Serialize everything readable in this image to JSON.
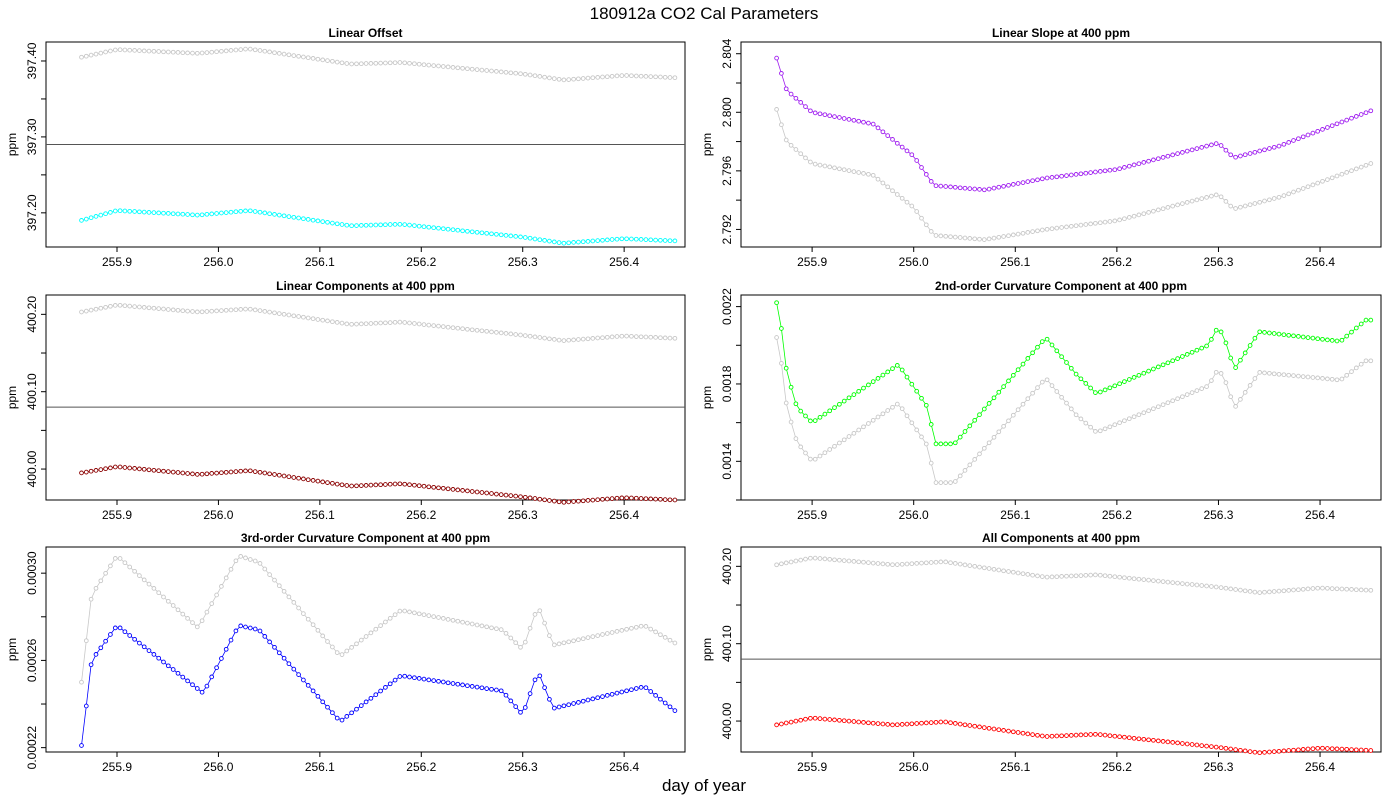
{
  "figure": {
    "title": "180912a   CO2 Cal Parameters",
    "xlabel": "day of year",
    "colors": {
      "reference": "#c8c8c8",
      "axis": "#000000",
      "hline": "#555555"
    }
  },
  "chart_data": [
    {
      "type": "line",
      "title": "Linear Offset",
      "ylabel": "ppm",
      "xlim": [
        255.83,
        256.46
      ],
      "ylim": [
        397.155,
        397.425
      ],
      "xticks": [
        255.9,
        256.0,
        256.1,
        256.2,
        256.3,
        256.4
      ],
      "xtick_labels": [
        "255.9",
        "256.0",
        "256.1",
        "256.2",
        "256.3",
        "256.4"
      ],
      "yticks": [
        397.2,
        397.3,
        397.4
      ],
      "ytick_labels": [
        "397.20",
        "397.30",
        "397.40"
      ],
      "hline": 397.29,
      "x_range": [
        255.865,
        256.45
      ],
      "series": [
        {
          "color": "#c8c8c8",
          "values": [
            [
              255.865,
              397.405
            ],
            [
              255.9,
              397.415
            ],
            [
              255.98,
              397.41
            ],
            [
              256.03,
              397.416
            ],
            [
              256.13,
              397.396
            ],
            [
              256.18,
              397.398
            ],
            [
              256.3,
              397.383
            ],
            [
              256.34,
              397.375
            ],
            [
              256.4,
              397.381
            ],
            [
              256.45,
              397.378
            ]
          ]
        },
        {
          "color": "#00ffff",
          "values": [
            [
              255.865,
              397.19
            ],
            [
              255.9,
              397.203
            ],
            [
              255.98,
              397.197
            ],
            [
              256.03,
              397.203
            ],
            [
              256.13,
              397.183
            ],
            [
              256.18,
              397.185
            ],
            [
              256.3,
              397.168
            ],
            [
              256.34,
              397.16
            ],
            [
              256.4,
              397.166
            ],
            [
              256.45,
              397.163
            ]
          ]
        }
      ]
    },
    {
      "type": "line",
      "title": "Linear Slope at 400 ppm",
      "ylabel": "ppm",
      "xlim": [
        255.83,
        256.46
      ],
      "ylim": [
        2.7908,
        2.8048
      ],
      "xticks": [
        255.9,
        256.0,
        256.1,
        256.2,
        256.3,
        256.4
      ],
      "xtick_labels": [
        "255.9",
        "256.0",
        "256.1",
        "256.2",
        "256.3",
        "256.4"
      ],
      "yticks": [
        2.792,
        2.796,
        2.8,
        2.804
      ],
      "ytick_labels": [
        "2.792",
        "2.796",
        "2.800",
        "2.804"
      ],
      "hline": null,
      "x_range": [
        255.865,
        256.45
      ],
      "series": [
        {
          "color": "#c8c8c8",
          "values": [
            [
              255.865,
              2.8002
            ],
            [
              255.875,
              2.798
            ],
            [
              255.9,
              2.7965
            ],
            [
              255.96,
              2.7957
            ],
            [
              256.0,
              2.7935
            ],
            [
              256.02,
              2.7916
            ],
            [
              256.07,
              2.7913
            ],
            [
              256.13,
              2.792
            ],
            [
              256.2,
              2.7926
            ],
            [
              256.3,
              2.7944
            ],
            [
              256.315,
              2.7934
            ],
            [
              256.36,
              2.7942
            ],
            [
              256.45,
              2.7965
            ]
          ]
        },
        {
          "color": "#a020f0",
          "values": [
            [
              255.865,
              2.8037
            ],
            [
              255.875,
              2.8015
            ],
            [
              255.9,
              2.8
            ],
            [
              255.96,
              2.7992
            ],
            [
              256.0,
              2.797
            ],
            [
              256.02,
              2.795
            ],
            [
              256.07,
              2.7947
            ],
            [
              256.13,
              2.7955
            ],
            [
              256.2,
              2.7961
            ],
            [
              256.3,
              2.7979
            ],
            [
              256.315,
              2.7969
            ],
            [
              256.36,
              2.7977
            ],
            [
              256.45,
              2.8001
            ]
          ]
        }
      ]
    },
    {
      "type": "line",
      "title": "Linear Components at 400 ppm",
      "ylabel": "ppm",
      "xlim": [
        255.83,
        256.46
      ],
      "ylim": [
        399.96,
        400.225
      ],
      "xticks": [
        255.9,
        256.0,
        256.1,
        256.2,
        256.3,
        256.4
      ],
      "xtick_labels": [
        "255.9",
        "256.0",
        "256.1",
        "256.2",
        "256.3",
        "256.4"
      ],
      "yticks": [
        400.0,
        400.1,
        400.2
      ],
      "ytick_labels": [
        "400.00",
        "400.10",
        "400.20"
      ],
      "hline": 400.08,
      "x_range": [
        255.865,
        256.45
      ],
      "series": [
        {
          "color": "#c8c8c8",
          "values": [
            [
              255.865,
              400.203
            ],
            [
              255.9,
              400.212
            ],
            [
              255.98,
              400.203
            ],
            [
              256.03,
              400.207
            ],
            [
              256.13,
              400.187
            ],
            [
              256.18,
              400.19
            ],
            [
              256.3,
              400.173
            ],
            [
              256.34,
              400.166
            ],
            [
              256.4,
              400.172
            ],
            [
              256.45,
              400.169
            ]
          ]
        },
        {
          "color": "#8b0000",
          "values": [
            [
              255.865,
              399.995
            ],
            [
              255.9,
              400.003
            ],
            [
              255.98,
              399.993
            ],
            [
              256.03,
              399.998
            ],
            [
              256.13,
              399.978
            ],
            [
              256.18,
              399.981
            ],
            [
              256.3,
              399.964
            ],
            [
              256.34,
              399.957
            ],
            [
              256.4,
              399.963
            ],
            [
              256.45,
              399.96
            ]
          ]
        }
      ]
    },
    {
      "type": "line",
      "title": "2nd-order Curvature Component at 400 ppm",
      "ylabel": "ppm",
      "xlim": [
        255.83,
        256.46
      ],
      "ylim": [
        0.0012,
        0.00226
      ],
      "xticks": [
        255.9,
        256.0,
        256.1,
        256.2,
        256.3,
        256.4
      ],
      "xtick_labels": [
        "255.9",
        "256.0",
        "256.1",
        "256.2",
        "256.3",
        "256.4"
      ],
      "yticks": [
        0.0014,
        0.0018,
        0.0022
      ],
      "ytick_labels": [
        "0.0014",
        "0.0018",
        "0.0022"
      ],
      "hline": null,
      "x_range": [
        255.865,
        256.45
      ],
      "series": [
        {
          "color": "#c8c8c8",
          "values": [
            [
              255.865,
              0.00204
            ],
            [
              255.87,
              0.0019
            ],
            [
              255.875,
              0.00168
            ],
            [
              255.885,
              0.0015
            ],
            [
              255.9,
              0.0014
            ],
            [
              255.985,
              0.0017
            ],
            [
              256.015,
              0.00147
            ],
            [
              256.02,
              0.00129
            ],
            [
              256.04,
              0.00129
            ],
            [
              256.13,
              0.00183
            ],
            [
              256.16,
              0.00164
            ],
            [
              256.18,
              0.00155
            ],
            [
              256.29,
              0.00179
            ],
            [
              256.3,
              0.00188
            ],
            [
              256.31,
              0.00178
            ],
            [
              256.315,
              0.00167
            ],
            [
              256.34,
              0.00186
            ],
            [
              256.42,
              0.00182
            ],
            [
              256.445,
              0.00192
            ]
          ]
        },
        {
          "color": "#00ff00",
          "values": [
            [
              255.865,
              0.00222
            ],
            [
              255.87,
              0.00208
            ],
            [
              255.875,
              0.00186
            ],
            [
              255.885,
              0.00168
            ],
            [
              255.9,
              0.0016
            ],
            [
              255.985,
              0.0019
            ],
            [
              256.015,
              0.00167
            ],
            [
              256.02,
              0.00149
            ],
            [
              256.04,
              0.00149
            ],
            [
              256.13,
              0.00204
            ],
            [
              256.16,
              0.00185
            ],
            [
              256.18,
              0.00175
            ],
            [
              256.29,
              0.002
            ],
            [
              256.3,
              0.0021
            ],
            [
              256.31,
              0.00198
            ],
            [
              256.315,
              0.00187
            ],
            [
              256.34,
              0.00207
            ],
            [
              256.42,
              0.00202
            ],
            [
              256.445,
              0.00213
            ]
          ]
        }
      ]
    },
    {
      "type": "line",
      "title": "3rd-order Curvature Component at 400 ppm",
      "ylabel": "ppm",
      "xlim": [
        255.83,
        256.46
      ],
      "ylim": [
        0.000218,
        0.000312
      ],
      "xticks": [
        255.9,
        256.0,
        256.1,
        256.2,
        256.3,
        256.4
      ],
      "xtick_labels": [
        "255.9",
        "256.0",
        "256.1",
        "256.2",
        "256.3",
        "256.4"
      ],
      "yticks": [
        0.00022,
        0.00026,
        0.0003
      ],
      "ytick_labels": [
        "0.00022",
        "0.00026",
        "0.00030"
      ],
      "hline": null,
      "x_range": [
        255.865,
        256.45
      ],
      "series": [
        {
          "color": "#c8c8c8",
          "values": [
            [
              255.865,
              0.00025
            ],
            [
              255.87,
              0.00027
            ],
            [
              255.875,
              0.00029
            ],
            [
              255.9,
              0.000308
            ],
            [
              255.98,
              0.000275
            ],
            [
              256.02,
              0.000308
            ],
            [
              256.04,
              0.000305
            ],
            [
              256.12,
              0.000262
            ],
            [
              256.18,
              0.000283
            ],
            [
              256.28,
              0.000274
            ],
            [
              256.3,
              0.000265
            ],
            [
              256.315,
              0.000285
            ],
            [
              256.33,
              0.000267
            ],
            [
              256.42,
              0.000276
            ],
            [
              256.45,
              0.000268
            ]
          ]
        },
        {
          "color": "#0000ff",
          "values": [
            [
              255.865,
              0.000221
            ],
            [
              255.87,
              0.00024
            ],
            [
              255.875,
              0.00026
            ],
            [
              255.9,
              0.000276
            ],
            [
              255.985,
              0.000245
            ],
            [
              256.02,
              0.000276
            ],
            [
              256.04,
              0.000274
            ],
            [
              256.12,
              0.000232
            ],
            [
              256.18,
              0.000253
            ],
            [
              256.28,
              0.000246
            ],
            [
              256.3,
              0.000235
            ],
            [
              256.315,
              0.000255
            ],
            [
              256.33,
              0.000238
            ],
            [
              256.42,
              0.000248
            ],
            [
              256.45,
              0.000237
            ]
          ]
        }
      ]
    },
    {
      "type": "line",
      "title": "All Components at 400 ppm",
      "ylabel": "ppm",
      "xlim": [
        255.83,
        256.46
      ],
      "ylim": [
        399.96,
        400.225
      ],
      "xticks": [
        255.9,
        256.0,
        256.1,
        256.2,
        256.3,
        256.4
      ],
      "xtick_labels": [
        "255.9",
        "256.0",
        "256.1",
        "256.2",
        "256.3",
        "256.4"
      ],
      "yticks": [
        400.0,
        400.1,
        400.2
      ],
      "ytick_labels": [
        "400.00",
        "400.10",
        "400.20"
      ],
      "hline": 400.08,
      "x_range": [
        255.865,
        256.45
      ],
      "series": [
        {
          "color": "#c8c8c8",
          "values": [
            [
              255.865,
              400.202
            ],
            [
              255.9,
              400.211
            ],
            [
              255.98,
              400.202
            ],
            [
              256.03,
              400.206
            ],
            [
              256.13,
              400.186
            ],
            [
              256.18,
              400.189
            ],
            [
              256.3,
              400.173
            ],
            [
              256.34,
              400.166
            ],
            [
              256.4,
              400.172
            ],
            [
              256.45,
              400.169
            ]
          ]
        },
        {
          "color": "#ff0000",
          "values": [
            [
              255.865,
              399.995
            ],
            [
              255.9,
              400.004
            ],
            [
              255.98,
              399.995
            ],
            [
              256.03,
              399.999
            ],
            [
              256.13,
              399.98
            ],
            [
              256.18,
              399.983
            ],
            [
              256.3,
              399.966
            ],
            [
              256.34,
              399.959
            ],
            [
              256.4,
              399.965
            ],
            [
              256.45,
              399.962
            ]
          ]
        }
      ]
    }
  ]
}
